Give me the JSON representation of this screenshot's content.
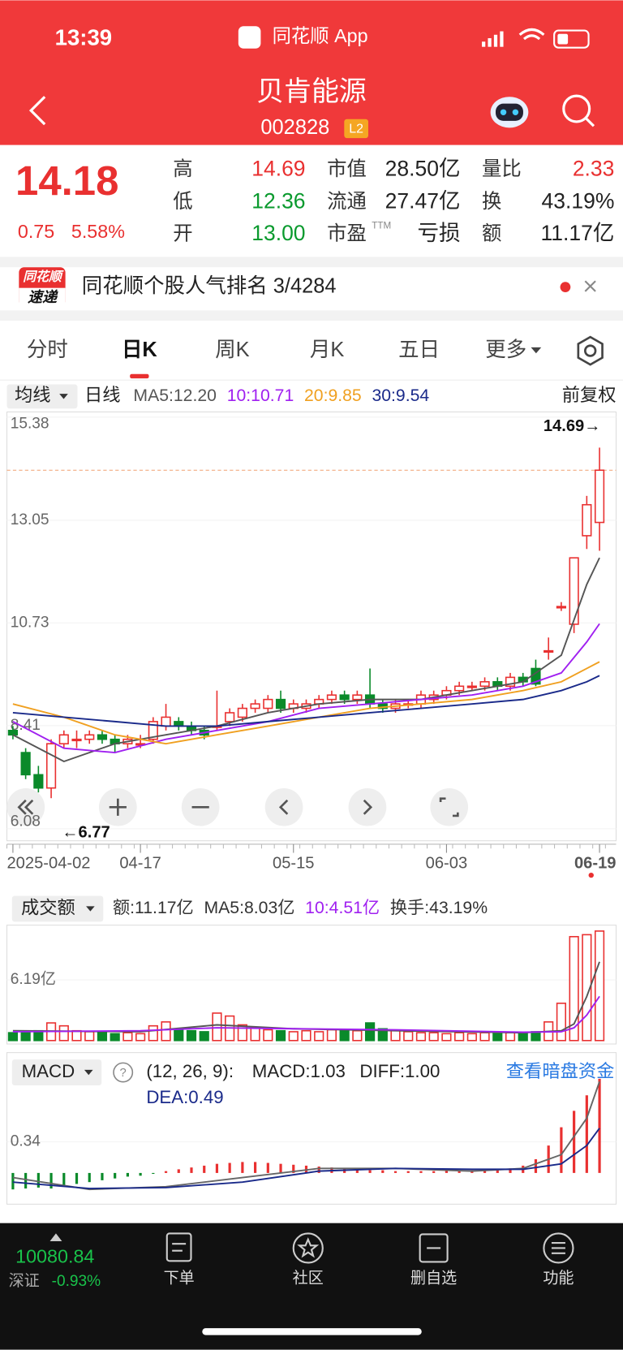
{
  "status": {
    "time": "13:39",
    "app": "同花顺 App"
  },
  "header": {
    "name": "贝肯能源",
    "code": "002828",
    "level": "L2"
  },
  "quote": {
    "price": "14.18",
    "change": "0.75",
    "pct": "5.58%",
    "fields": [
      {
        "label": "高",
        "value": "14.69",
        "color": "#e93030"
      },
      {
        "label": "低",
        "value": "12.36",
        "color": "#0a9a2e"
      },
      {
        "label": "开",
        "value": "13.00",
        "color": "#0a9a2e"
      },
      {
        "label": "市值",
        "value": "28.50亿",
        "color": "#222222"
      },
      {
        "label": "流通",
        "value": "27.47亿",
        "color": "#222222"
      },
      {
        "label": "市盈",
        "sup": "TTM",
        "value": "亏损",
        "color": "#222222"
      },
      {
        "label": "量比",
        "value": "2.33",
        "color": "#e93030"
      },
      {
        "label": "换",
        "value": "43.19%",
        "color": "#222222"
      },
      {
        "label": "额",
        "value": "11.17亿",
        "color": "#222222"
      }
    ]
  },
  "banner": {
    "logo_top": "同花顺",
    "logo_bottom": "速递",
    "text": "同花顺个股人气排名 3/4284"
  },
  "tabs": {
    "items": [
      "分时",
      "日K",
      "周K",
      "月K",
      "五日",
      "更多"
    ],
    "active": 1
  },
  "kline": {
    "selector": "均线",
    "period": "日线",
    "ma_labels": [
      {
        "text": "MA5:12.20",
        "color": "#555555"
      },
      {
        "text": "10:10.71",
        "color": "#a020f0"
      },
      {
        "text": "20:9.85",
        "color": "#f0a020"
      },
      {
        "text": "30:9.54",
        "color": "#1a2a8a"
      }
    ],
    "adjust": "前复权",
    "high_label": "14.69→",
    "low_label": "←6.77",
    "ylim": [
      6.08,
      15.38
    ],
    "yticks": [
      15.38,
      13.05,
      10.73,
      8.41,
      6.08
    ],
    "candles": [
      [
        8.3,
        8.2,
        8.4,
        8.1
      ],
      [
        7.8,
        7.3,
        7.9,
        7.2
      ],
      [
        7.3,
        7.0,
        7.5,
        6.9
      ],
      [
        7.0,
        8.0,
        8.1,
        6.77
      ],
      [
        8.0,
        8.2,
        8.3,
        7.9
      ],
      [
        8.1,
        8.1,
        8.3,
        7.9
      ],
      [
        8.1,
        8.2,
        8.3,
        8.0
      ],
      [
        8.2,
        8.1,
        8.3,
        8.0
      ],
      [
        8.1,
        8.0,
        8.2,
        7.8
      ],
      [
        8.0,
        8.1,
        8.2,
        7.9
      ],
      [
        8.0,
        8.0,
        8.2,
        7.9
      ],
      [
        8.1,
        8.5,
        8.6,
        8.0
      ],
      [
        8.4,
        8.6,
        8.9,
        8.3
      ],
      [
        8.5,
        8.4,
        8.6,
        8.3
      ],
      [
        8.4,
        8.3,
        8.5,
        8.2
      ],
      [
        8.3,
        8.2,
        8.4,
        8.1
      ],
      [
        8.4,
        8.4,
        9.2,
        8.3
      ],
      [
        8.5,
        8.7,
        8.8,
        8.4
      ],
      [
        8.6,
        8.8,
        8.9,
        8.5
      ],
      [
        8.8,
        8.9,
        9.0,
        8.7
      ],
      [
        8.8,
        9.0,
        9.1,
        8.7
      ],
      [
        9.0,
        8.8,
        9.2,
        8.7
      ],
      [
        8.8,
        8.9,
        9.0,
        8.7
      ],
      [
        8.8,
        8.9,
        9.0,
        8.7
      ],
      [
        8.9,
        9.0,
        9.1,
        8.8
      ],
      [
        9.0,
        9.1,
        9.2,
        8.9
      ],
      [
        9.1,
        9.0,
        9.2,
        8.9
      ],
      [
        9.0,
        9.1,
        9.2,
        8.9
      ],
      [
        9.1,
        8.9,
        9.7,
        8.8
      ],
      [
        8.9,
        8.8,
        9.0,
        8.7
      ],
      [
        8.8,
        8.9,
        9.0,
        8.7
      ],
      [
        8.9,
        8.9,
        9.0,
        8.8
      ],
      [
        8.9,
        9.1,
        9.2,
        8.8
      ],
      [
        9.0,
        9.1,
        9.2,
        8.9
      ],
      [
        9.1,
        9.2,
        9.3,
        9.0
      ],
      [
        9.2,
        9.3,
        9.4,
        9.1
      ],
      [
        9.3,
        9.3,
        9.4,
        9.2
      ],
      [
        9.3,
        9.4,
        9.5,
        9.2
      ],
      [
        9.4,
        9.3,
        9.5,
        9.2
      ],
      [
        9.3,
        9.5,
        9.6,
        9.2
      ],
      [
        9.5,
        9.4,
        9.6,
        9.3
      ],
      [
        9.7,
        9.35,
        9.9,
        9.3
      ],
      [
        10.1,
        10.1,
        10.4,
        9.9
      ],
      [
        11.1,
        11.1,
        11.2,
        11.0
      ],
      [
        10.7,
        12.2,
        12.2,
        10.5
      ],
      [
        12.7,
        13.4,
        13.6,
        12.4
      ],
      [
        13.0,
        14.18,
        14.69,
        12.36
      ]
    ],
    "ma_lines": [
      {
        "color": "#555555",
        "x": [
          0,
          4,
          8,
          12,
          16,
          20,
          24,
          28,
          32,
          36,
          40,
          43,
          45,
          46
        ],
        "values": [
          8.2,
          7.6,
          8.0,
          8.2,
          8.4,
          8.7,
          8.9,
          9.0,
          9.0,
          9.2,
          9.4,
          10.0,
          11.6,
          12.2
        ]
      },
      {
        "color": "#a020f0",
        "x": [
          0,
          4,
          8,
          12,
          16,
          20,
          24,
          28,
          32,
          36,
          40,
          43,
          45,
          46
        ],
        "values": [
          8.5,
          7.9,
          7.8,
          8.1,
          8.3,
          8.5,
          8.8,
          8.9,
          9.0,
          9.1,
          9.3,
          9.6,
          10.3,
          10.71
        ]
      },
      {
        "color": "#f0a020",
        "x": [
          0,
          4,
          8,
          12,
          16,
          20,
          24,
          28,
          32,
          36,
          40,
          43,
          45,
          46
        ],
        "values": [
          8.9,
          8.6,
          8.2,
          8.0,
          8.2,
          8.4,
          8.6,
          8.8,
          8.9,
          9.0,
          9.2,
          9.4,
          9.7,
          9.85
        ]
      },
      {
        "color": "#1a2a8a",
        "x": [
          0,
          4,
          8,
          12,
          16,
          20,
          24,
          28,
          32,
          36,
          40,
          43,
          45,
          46
        ],
        "values": [
          8.7,
          8.6,
          8.5,
          8.4,
          8.4,
          8.5,
          8.6,
          8.7,
          8.8,
          8.9,
          9.0,
          9.2,
          9.4,
          9.54
        ]
      }
    ],
    "date_ticks": [
      {
        "index": 0,
        "label": "2025-04-02"
      },
      {
        "index": 10,
        "label": "04-17"
      },
      {
        "index": 22,
        "label": "05-15"
      },
      {
        "index": 34,
        "label": "06-03"
      },
      {
        "index": 46,
        "label": "06-19"
      }
    ]
  },
  "volume": {
    "selector": "成交额",
    "labels": [
      {
        "text": "额:11.17亿",
        "color": "#333333"
      },
      {
        "text": "MA5:8.03亿",
        "color": "#333333"
      },
      {
        "text": "10:4.51亿",
        "color": "#a020f0"
      },
      {
        "text": "换手:43.19%",
        "color": "#333333"
      }
    ],
    "ylim": [
      0,
      12.3
    ],
    "yticks": [
      {
        "value": 6.19,
        "label": "6.19亿"
      }
    ],
    "values": [
      0.8,
      0.9,
      1.0,
      1.8,
      1.5,
      1.0,
      0.9,
      0.8,
      0.7,
      0.8,
      0.7,
      1.5,
      1.9,
      1.2,
      1.0,
      0.9,
      2.8,
      2.5,
      1.6,
      1.3,
      1.1,
      1.0,
      0.9,
      1.0,
      0.9,
      1.1,
      1.0,
      1.0,
      1.8,
      1.2,
      1.0,
      0.9,
      0.8,
      0.8,
      0.7,
      0.8,
      0.7,
      0.8,
      0.7,
      0.8,
      0.7,
      0.9,
      1.9,
      3.8,
      10.6,
      10.8,
      11.17
    ],
    "ma_lines": [
      {
        "color": "#555555",
        "x": [
          0,
          10,
          16,
          22,
          30,
          40,
          43,
          44,
          45,
          46
        ],
        "values": [
          1.0,
          0.9,
          1.6,
          1.2,
          1.0,
          0.8,
          1.0,
          1.7,
          4.5,
          8.03
        ]
      },
      {
        "color": "#a020f0",
        "x": [
          0,
          10,
          16,
          22,
          30,
          40,
          43,
          44,
          45,
          46
        ],
        "values": [
          0.9,
          1.0,
          1.3,
          1.2,
          1.1,
          0.85,
          0.9,
          1.3,
          2.6,
          4.51
        ]
      }
    ]
  },
  "macd": {
    "selector": "MACD",
    "params": "(12, 26, 9):",
    "macd_label": "MACD:1.03",
    "diff_label": "DIFF:1.00",
    "dea_label": "DEA:0.49",
    "link": "查看暗盘资金",
    "ylim": [
      -0.2,
      1.1
    ],
    "yticks": [
      0.34
    ],
    "values": [
      -0.18,
      -0.17,
      -0.16,
      -0.17,
      -0.14,
      -0.12,
      -0.1,
      -0.08,
      -0.06,
      -0.04,
      -0.03,
      -0.01,
      0.02,
      0.04,
      0.06,
      0.08,
      0.1,
      0.11,
      0.12,
      0.12,
      0.11,
      0.1,
      0.09,
      0.08,
      0.07,
      0.06,
      0.05,
      0.04,
      0.03,
      0.03,
      0.02,
      0.02,
      0.02,
      0.02,
      0.03,
      0.03,
      0.03,
      0.04,
      0.04,
      0.05,
      0.08,
      0.15,
      0.3,
      0.5,
      0.68,
      0.85,
      1.03
    ],
    "lines": [
      {
        "color": "#666666",
        "x": [
          0,
          6,
          12,
          18,
          24,
          30,
          36,
          40,
          43,
          45,
          46
        ],
        "values": [
          -0.05,
          -0.18,
          -0.15,
          -0.05,
          0.05,
          0.05,
          0.02,
          0.05,
          0.2,
          0.6,
          1.0
        ]
      },
      {
        "color": "#1a2a8a",
        "x": [
          0,
          6,
          12,
          18,
          24,
          30,
          36,
          40,
          43,
          45,
          46
        ],
        "values": [
          -0.1,
          -0.17,
          -0.16,
          -0.1,
          0.02,
          0.05,
          0.04,
          0.04,
          0.1,
          0.3,
          0.49
        ]
      }
    ]
  },
  "footer": {
    "index_value": "10080.84",
    "index_name": "深证",
    "index_change": "-0.93%",
    "nav": [
      "下单",
      "社区",
      "删自选",
      "功能"
    ]
  }
}
